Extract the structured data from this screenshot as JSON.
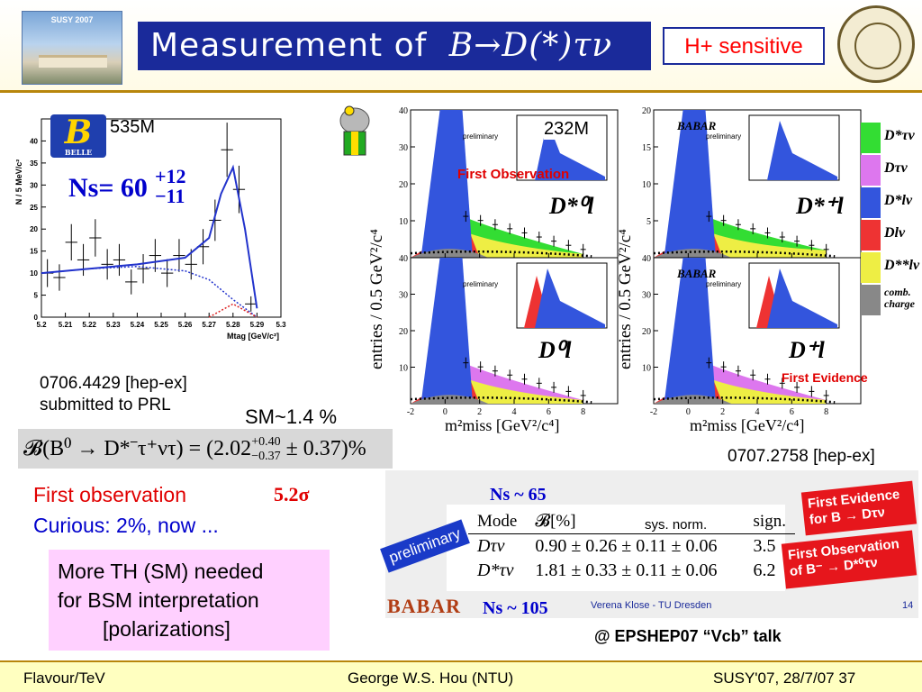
{
  "header": {
    "thumb_title": "SUSY 2007",
    "title_text": "Measurement of",
    "title_math": "B→D(*)τν",
    "hplus_label": "H+ sensitive"
  },
  "belle": {
    "events": "535M",
    "ns_label": "Ns= 60",
    "ns_err_up": "+12",
    "ns_err_dn": "−11",
    "logo_text": "B",
    "logo_sub": "BELLE",
    "ylabel": "N / 5 MeV/c²",
    "xlabel": "Mtag [GeV/c²]",
    "ref_line1": "0706.4429 [hep-ex]",
    "ref_line2": "submitted to PRL",
    "sm_ratio": "SM~1.4 %",
    "bf_formula": "𝓑(B⁰ → D*⁻τ⁺ντ) = (2.02",
    "bf_err_up": "+0.40",
    "bf_err_dn": "−0.37",
    "bf_tail": " ± 0.37)%"
  },
  "notes": {
    "first_obs": "First observation",
    "sigma": "5.2σ",
    "curious": "Curious: 2%, now ...",
    "th_line1": "More TH (SM) needed",
    "th_line2": "for BSM interpretation",
    "th_line3": "[polarizations]"
  },
  "babar": {
    "events": "232M",
    "ylabel": "entries / 0.5 GeV²/c⁴",
    "xlabel": "m²miss [GeV²/c⁴]",
    "panel_titles": [
      "D*⁰l",
      "D*⁺l",
      "D⁰l",
      "D⁺l"
    ],
    "panel_logo": "BABAR",
    "panel_logo_sub": "preliminary",
    "first_observation": "First Observation",
    "first_evidence": "First Evidence",
    "legend": [
      {
        "label": "D*τν",
        "color": "#33dd33"
      },
      {
        "label": "Dτν",
        "color": "#dd77ee"
      },
      {
        "label": "D*lν",
        "color": "#3355dd"
      },
      {
        "label": "Dlν",
        "color": "#ee3333"
      },
      {
        "label": "D**lν",
        "color": "#eeee44"
      },
      {
        "label": "comb. charge",
        "color": "#888888"
      }
    ],
    "ref": "0707.2758 [hep-ex]"
  },
  "table": {
    "ns_top": "Ns ~ 65",
    "ns_bottom": "Ns ~ 105",
    "preliminary": "preliminary",
    "headers": [
      "Mode",
      "𝓑[%]",
      "sign."
    ],
    "sys_norm": "sys.   norm.",
    "rows": [
      {
        "mode": "Dτν",
        "bf": "0.90 ± 0.26 ± 0.11 ± 0.06",
        "sign": "3.5"
      },
      {
        "mode": "D*τν",
        "bf": "1.81 ± 0.33 ± 0.11 ± 0.06",
        "sign": "6.2"
      }
    ],
    "fe_tag": "First Evidence for B → Dτν",
    "fo_tag": "First Observation of B⁻ → D*⁰τν",
    "babar_word": "BABAR",
    "credit": "Verena Klose - TU Dresden",
    "slide_no": "14",
    "talk": "@ EPSHEP07 “Vcb” talk"
  },
  "footer": {
    "left": "Flavour/TeV",
    "center": "George W.S. Hou (NTU)",
    "right": "SUSY'07, 28/7/07   37"
  },
  "chart_data": [
    {
      "type": "scatter",
      "title": "",
      "xlabel": "Mtag [GeV/c²]",
      "ylabel": "N / 5 MeV/c²",
      "xlim": [
        5.2,
        5.3
      ],
      "ylim": [
        0,
        45
      ],
      "x_ticks": [
        5.2,
        5.21,
        5.22,
        5.23,
        5.24,
        5.25,
        5.26,
        5.27,
        5.28,
        5.29,
        5.3
      ],
      "y_ticks": [
        0,
        5,
        10,
        15,
        20,
        25,
        30,
        35,
        40
      ],
      "series": [
        {
          "name": "data",
          "x": [
            5.2025,
            5.2075,
            5.2125,
            5.2175,
            5.2225,
            5.2275,
            5.2325,
            5.2375,
            5.2425,
            5.2475,
            5.2525,
            5.2575,
            5.2625,
            5.2675,
            5.2725,
            5.2775,
            5.2825,
            5.2875
          ],
          "y": [
            10,
            9,
            17,
            13,
            18,
            12,
            13,
            8,
            11,
            14,
            10,
            14,
            12,
            16,
            22,
            38,
            29,
            3
          ]
        },
        {
          "name": "fit",
          "x": [
            5.2,
            5.22,
            5.24,
            5.26,
            5.27,
            5.275,
            5.28,
            5.285,
            5.29
          ],
          "y": [
            10,
            11,
            12,
            13.5,
            18,
            28,
            34,
            20,
            2
          ]
        },
        {
          "name": "background",
          "x": [
            5.2,
            5.22,
            5.24,
            5.26,
            5.27,
            5.28,
            5.29
          ],
          "y": [
            10,
            11,
            11.5,
            10.5,
            8.5,
            4,
            0
          ]
        },
        {
          "name": "peaking",
          "x": [
            5.27,
            5.275,
            5.28,
            5.285,
            5.29
          ],
          "y": [
            0,
            1.5,
            3,
            1.5,
            0
          ]
        }
      ]
    },
    {
      "type": "area",
      "title": "D*⁰l",
      "xlabel": "m²miss [GeV²/c⁴]",
      "ylabel": "entries / 0.5 GeV²/c⁴",
      "xlim": [
        -2,
        10
      ],
      "ylim": [
        0,
        40
      ],
      "x_ticks": [
        -2,
        0,
        2,
        4,
        6,
        8
      ],
      "y_ticks": [
        0,
        10,
        20,
        30,
        40
      ],
      "annotations": [
        "First Observation",
        "232M"
      ]
    },
    {
      "type": "area",
      "title": "D*⁺l",
      "xlabel": "m²miss [GeV²/c⁴]",
      "ylabel": "entries / 0.5 GeV²/c⁴",
      "xlim": [
        -2,
        10
      ],
      "ylim": [
        0,
        20
      ],
      "x_ticks": [
        -2,
        0,
        2,
        4,
        6,
        8
      ],
      "y_ticks": [
        0,
        5,
        10,
        15,
        20
      ]
    },
    {
      "type": "area",
      "title": "D⁰l",
      "xlabel": "m²miss [GeV²/c⁴]",
      "ylabel": "entries / 0.5 GeV²/c⁴",
      "xlim": [
        -2,
        10
      ],
      "ylim": [
        0,
        40
      ],
      "x_ticks": [
        -2,
        0,
        2,
        4,
        6,
        8
      ],
      "y_ticks": [
        0,
        10,
        20,
        30,
        40
      ]
    },
    {
      "type": "area",
      "title": "D⁺l",
      "xlabel": "m²miss [GeV²/c⁴]",
      "ylabel": "entries / 0.5 GeV²/c⁴",
      "xlim": [
        -2,
        10
      ],
      "ylim": [
        0,
        40
      ],
      "x_ticks": [
        -2,
        0,
        2,
        4,
        6,
        8
      ],
      "y_ticks": [
        0,
        10,
        20,
        30,
        40
      ],
      "annotations": [
        "First Evidence"
      ]
    }
  ]
}
